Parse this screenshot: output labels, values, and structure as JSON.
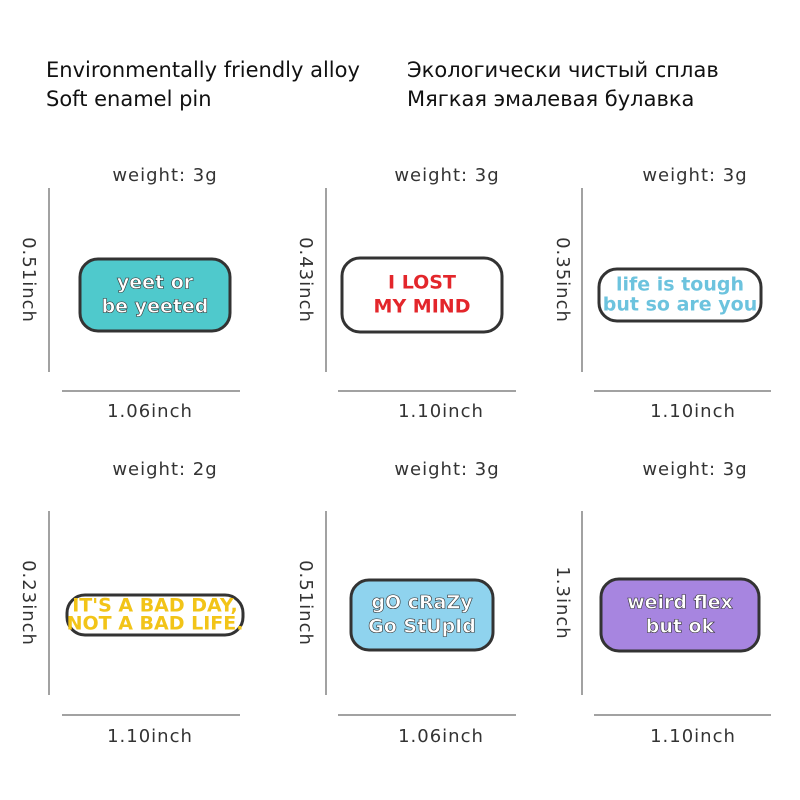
{
  "header": {
    "english": [
      "Environmentally friendly alloy",
      "Soft enamel pin"
    ],
    "russian": [
      "Экологически чистый сплав",
      "Мягкая эмалевая булавка"
    ]
  },
  "items": [
    {
      "weight": "weight:  3g",
      "height": "0.51inch",
      "width": "1.06inch",
      "pin_text": [
        "yeet or",
        "be yeeted"
      ]
    },
    {
      "weight": "weight:  3g",
      "height": "0.43inch",
      "width": "1.10inch",
      "pin_text": [
        "I LOST",
        "MY MIND"
      ]
    },
    {
      "weight": "weight:  3g",
      "height": "0.35inch",
      "width": "1.10inch",
      "pin_text": [
        "life is tough",
        "but so are you"
      ]
    },
    {
      "weight": "weight:  2g",
      "height": "0.23inch",
      "width": "1.10inch",
      "pin_text": [
        "IT'S A BAD DAY,",
        "NOT A BAD LIFE."
      ]
    },
    {
      "weight": "weight:  3g",
      "height": "0.51inch",
      "width": "1.06inch",
      "pin_text": [
        "gO cRaZy",
        "Go StUpId"
      ]
    },
    {
      "weight": "weight:  3g",
      "height": "1.3inch",
      "width": "1.10inch",
      "pin_text": [
        "weird flex",
        "but ok"
      ]
    }
  ]
}
